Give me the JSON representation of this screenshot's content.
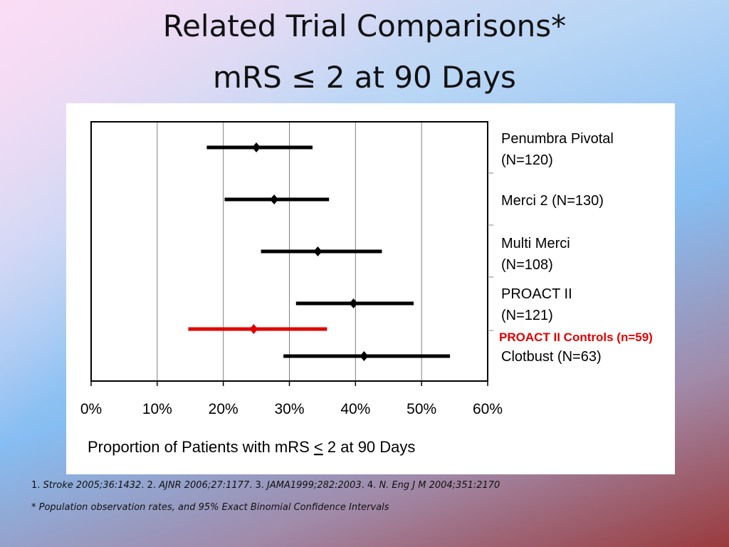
{
  "slide": {
    "title_line1": "Related Trial Comparisons*",
    "title_line2": "mRS ≤ 2 at 90 Days"
  },
  "chart_data": {
    "type": "forest",
    "xlabel": "Proportion of Patients with mRS ",
    "xlabel_symbol": "<",
    "xlabel_suffix": " 2 at 90 Days",
    "xlim": [
      0,
      60
    ],
    "xticks": [
      0,
      10,
      20,
      30,
      40,
      50,
      60
    ],
    "xtick_labels": [
      "0%",
      "10%",
      "20%",
      "30%",
      "40%",
      "50%",
      "60%"
    ],
    "grid": "vertical",
    "series": [
      {
        "label_line1": "Penumbra Pivotal",
        "label_line2": "(N=120)",
        "estimate": 25,
        "lower": 17.5,
        "upper": 33.5,
        "color": "#000000"
      },
      {
        "label_line1": "Merci 2 (N=130)",
        "label_line2": "",
        "estimate": 27.7,
        "lower": 20.2,
        "upper": 36,
        "color": "#000000"
      },
      {
        "label_line1": "Multi Merci",
        "label_line2": "(N=108)",
        "estimate": 34.3,
        "lower": 25.7,
        "upper": 44,
        "color": "#000000"
      },
      {
        "label_line1": "PROACT II",
        "label_line2": "(N=121)",
        "estimate": 39.7,
        "lower": 31,
        "upper": 48.8,
        "color": "#000000"
      },
      {
        "label_line1": "PROACT II Controls (n=59)",
        "label_line2": "",
        "estimate": 24.6,
        "lower": 14.7,
        "upper": 35.7,
        "color": "#e00000"
      },
      {
        "label_line1": "Clotbust (N=63)",
        "label_line2": "",
        "estimate": 41.3,
        "lower": 29.1,
        "upper": 54.3,
        "color": "#000000"
      }
    ]
  },
  "footnotes": {
    "refs": [
      {
        "num": "1. ",
        "src": "Stroke 2005;36:1432",
        "sep": ".  "
      },
      {
        "num": "2. ",
        "src": "AJNR 2006;27:1177",
        "sep": ".  "
      },
      {
        "num": "3. ",
        "src": "JAMA1999;282:2003",
        "sep": ". "
      },
      {
        "num": "4. ",
        "src": "N. Eng J M 2004;351:2170",
        "sep": ""
      }
    ],
    "note": "* Population observation rates, and 95% Exact Binomial Confidence Intervals"
  }
}
